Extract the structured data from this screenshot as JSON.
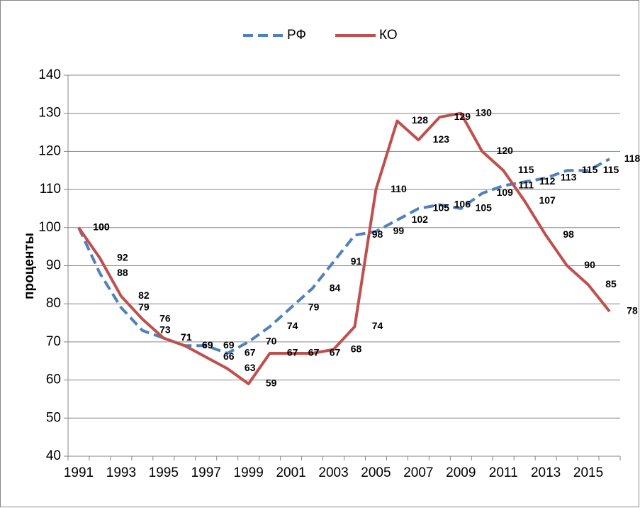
{
  "chart_data": {
    "type": "line",
    "y_label": "проценты",
    "categories": [
      "1991",
      null,
      "1993",
      null,
      "1995",
      null,
      "1997",
      null,
      "1999",
      null,
      "2001",
      null,
      "2003",
      null,
      "2005",
      null,
      "2007",
      null,
      "2009",
      null,
      "2011",
      null,
      "2013",
      null,
      "2015",
      null
    ],
    "series": [
      {
        "name": "РФ",
        "color": "#4f81bd",
        "dashed": true,
        "values": [
          100,
          88,
          79,
          73,
          71,
          69,
          69,
          67,
          70,
          74,
          79,
          84,
          91,
          98,
          99,
          102,
          105,
          106,
          105,
          109,
          111,
          112,
          113,
          115,
          115,
          118
        ]
      },
      {
        "name": "КО",
        "color": "#c0504d",
        "dashed": false,
        "values": [
          100,
          92,
          82,
          76,
          71,
          69,
          66,
          63,
          59,
          67,
          67,
          67,
          68,
          74,
          110,
          128,
          123,
          129,
          130,
          120,
          115,
          107,
          98,
          90,
          85,
          78
        ]
      }
    ],
    "ylim": [
      40,
      140
    ],
    "yticks": [
      40,
      50,
      60,
      70,
      80,
      90,
      100,
      110,
      120,
      130,
      140
    ],
    "grid": true,
    "legend": "top",
    "data_labels": true
  }
}
